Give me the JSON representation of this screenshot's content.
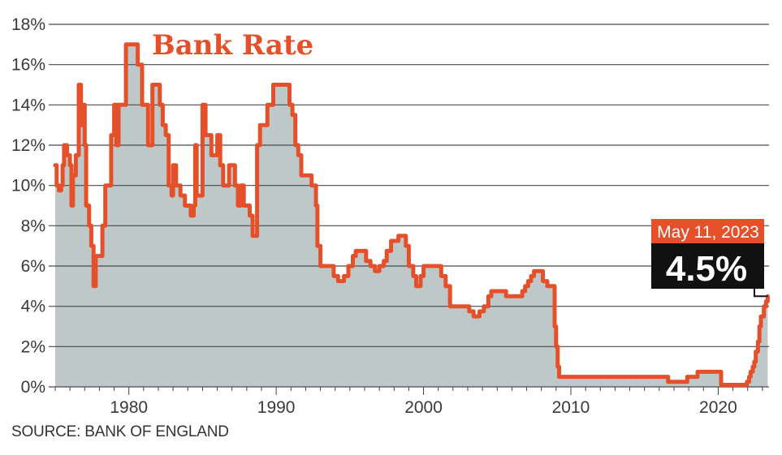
{
  "chart_data": {
    "type": "area",
    "title": "Bank Rate",
    "xlabel": "",
    "ylabel": "",
    "ylim": [
      0,
      18
    ],
    "xlim": [
      1975,
      2023.45
    ],
    "yticks": [
      0,
      2,
      4,
      6,
      8,
      10,
      12,
      14,
      16,
      18
    ],
    "ytick_labels": [
      "0%",
      "2%",
      "4%",
      "6%",
      "8%",
      "10%",
      "12%",
      "14%",
      "16%",
      "18%"
    ],
    "xticks": [
      1980,
      1990,
      2000,
      2010,
      2020
    ],
    "xtick_labels": [
      "1980",
      "1990",
      "2000",
      "2010",
      "2020"
    ],
    "grid": "horizontal",
    "colors": {
      "line": "#e5502a",
      "fill": "#bfc8c8",
      "grid": "#4a4a4a",
      "callout_date_bg": "#e5502a",
      "callout_value_bg": "#111111"
    },
    "annotation": {
      "date": "May 11, 2023",
      "value": "4.5%"
    },
    "source": "SOURCE: BANK OF ENGLAND",
    "points": [
      [
        1975.0,
        11.0
      ],
      [
        1975.1,
        10.0
      ],
      [
        1975.25,
        9.75
      ],
      [
        1975.4,
        10.0
      ],
      [
        1975.5,
        11.0
      ],
      [
        1975.6,
        12.0
      ],
      [
        1975.8,
        11.5
      ],
      [
        1976.0,
        11.0
      ],
      [
        1976.1,
        9.0
      ],
      [
        1976.2,
        10.5
      ],
      [
        1976.4,
        11.5
      ],
      [
        1976.6,
        15.0
      ],
      [
        1976.75,
        13.0
      ],
      [
        1976.85,
        14.0
      ],
      [
        1977.0,
        12.0
      ],
      [
        1977.1,
        9.0
      ],
      [
        1977.3,
        8.0
      ],
      [
        1977.45,
        7.0
      ],
      [
        1977.6,
        5.0
      ],
      [
        1977.75,
        6.5
      ],
      [
        1978.0,
        6.5
      ],
      [
        1978.2,
        8.0
      ],
      [
        1978.4,
        10.0
      ],
      [
        1978.6,
        10.0
      ],
      [
        1978.8,
        12.5
      ],
      [
        1979.0,
        14.0
      ],
      [
        1979.15,
        12.0
      ],
      [
        1979.3,
        14.0
      ],
      [
        1979.5,
        14.0
      ],
      [
        1979.8,
        17.0
      ],
      [
        1980.4,
        17.0
      ],
      [
        1980.6,
        16.0
      ],
      [
        1980.9,
        14.0
      ],
      [
        1981.2,
        14.0
      ],
      [
        1981.3,
        12.0
      ],
      [
        1981.5,
        12.0
      ],
      [
        1981.6,
        15.0
      ],
      [
        1981.9,
        15.0
      ],
      [
        1982.1,
        14.0
      ],
      [
        1982.3,
        13.0
      ],
      [
        1982.5,
        12.5
      ],
      [
        1982.7,
        10.0
      ],
      [
        1982.9,
        9.5
      ],
      [
        1983.0,
        11.0
      ],
      [
        1983.2,
        10.0
      ],
      [
        1983.5,
        9.5
      ],
      [
        1983.8,
        9.0
      ],
      [
        1984.0,
        9.0
      ],
      [
        1984.2,
        8.5
      ],
      [
        1984.4,
        9.0
      ],
      [
        1984.5,
        12.0
      ],
      [
        1984.6,
        9.5
      ],
      [
        1984.8,
        9.5
      ],
      [
        1985.0,
        14.0
      ],
      [
        1985.2,
        12.5
      ],
      [
        1985.4,
        12.5
      ],
      [
        1985.6,
        11.5
      ],
      [
        1985.8,
        11.5
      ],
      [
        1986.0,
        12.5
      ],
      [
        1986.2,
        11.0
      ],
      [
        1986.4,
        10.0
      ],
      [
        1986.6,
        10.0
      ],
      [
        1986.8,
        11.0
      ],
      [
        1987.0,
        11.0
      ],
      [
        1987.2,
        10.0
      ],
      [
        1987.4,
        9.0
      ],
      [
        1987.6,
        10.0
      ],
      [
        1987.8,
        9.0
      ],
      [
        1988.0,
        9.0
      ],
      [
        1988.2,
        8.5
      ],
      [
        1988.4,
        7.5
      ],
      [
        1988.55,
        7.5
      ],
      [
        1988.7,
        12.0
      ],
      [
        1988.9,
        13.0
      ],
      [
        1989.2,
        13.0
      ],
      [
        1989.4,
        14.0
      ],
      [
        1989.8,
        15.0
      ],
      [
        1990.7,
        15.0
      ],
      [
        1990.9,
        14.0
      ],
      [
        1991.1,
        13.5
      ],
      [
        1991.3,
        12.0
      ],
      [
        1991.5,
        11.5
      ],
      [
        1991.7,
        10.5
      ],
      [
        1992.0,
        10.5
      ],
      [
        1992.4,
        10.0
      ],
      [
        1992.7,
        9.0
      ],
      [
        1992.8,
        7.0
      ],
      [
        1993.0,
        6.0
      ],
      [
        1993.6,
        6.0
      ],
      [
        1993.9,
        5.5
      ],
      [
        1994.2,
        5.25
      ],
      [
        1994.6,
        5.5
      ],
      [
        1994.9,
        6.0
      ],
      [
        1995.2,
        6.5
      ],
      [
        1995.4,
        6.75
      ],
      [
        1995.9,
        6.75
      ],
      [
        1996.1,
        6.25
      ],
      [
        1996.4,
        6.0
      ],
      [
        1996.7,
        5.75
      ],
      [
        1997.0,
        6.0
      ],
      [
        1997.3,
        6.25
      ],
      [
        1997.5,
        6.75
      ],
      [
        1997.8,
        7.25
      ],
      [
        1998.2,
        7.25
      ],
      [
        1998.3,
        7.5
      ],
      [
        1998.7,
        7.5
      ],
      [
        1998.8,
        7.0
      ],
      [
        1999.0,
        6.0
      ],
      [
        1999.3,
        5.5
      ],
      [
        1999.5,
        5.0
      ],
      [
        1999.8,
        5.5
      ],
      [
        2000.0,
        6.0
      ],
      [
        2000.9,
        6.0
      ],
      [
        2001.2,
        5.5
      ],
      [
        2001.5,
        5.0
      ],
      [
        2001.8,
        4.0
      ],
      [
        2002.4,
        4.0
      ],
      [
        2002.9,
        4.0
      ],
      [
        2003.1,
        3.75
      ],
      [
        2003.4,
        3.5
      ],
      [
        2003.8,
        3.75
      ],
      [
        2004.1,
        4.0
      ],
      [
        2004.4,
        4.5
      ],
      [
        2004.6,
        4.75
      ],
      [
        2005.3,
        4.75
      ],
      [
        2005.6,
        4.5
      ],
      [
        2006.5,
        4.5
      ],
      [
        2006.7,
        4.75
      ],
      [
        2006.9,
        5.0
      ],
      [
        2007.1,
        5.25
      ],
      [
        2007.3,
        5.5
      ],
      [
        2007.5,
        5.75
      ],
      [
        2007.9,
        5.75
      ],
      [
        2008.1,
        5.25
      ],
      [
        2008.4,
        5.0
      ],
      [
        2008.8,
        5.0
      ],
      [
        2008.9,
        3.0
      ],
      [
        2009.0,
        2.0
      ],
      [
        2009.1,
        1.0
      ],
      [
        2009.2,
        0.5
      ],
      [
        2016.5,
        0.5
      ],
      [
        2016.6,
        0.25
      ],
      [
        2017.8,
        0.25
      ],
      [
        2017.9,
        0.5
      ],
      [
        2018.5,
        0.5
      ],
      [
        2018.6,
        0.75
      ],
      [
        2020.1,
        0.75
      ],
      [
        2020.2,
        0.1
      ],
      [
        2021.9,
        0.1
      ],
      [
        2021.95,
        0.25
      ],
      [
        2022.1,
        0.5
      ],
      [
        2022.2,
        0.75
      ],
      [
        2022.35,
        1.0
      ],
      [
        2022.45,
        1.25
      ],
      [
        2022.55,
        1.75
      ],
      [
        2022.7,
        2.25
      ],
      [
        2022.8,
        3.0
      ],
      [
        2022.9,
        3.5
      ],
      [
        2023.1,
        4.0
      ],
      [
        2023.25,
        4.25
      ],
      [
        2023.36,
        4.5
      ]
    ]
  }
}
